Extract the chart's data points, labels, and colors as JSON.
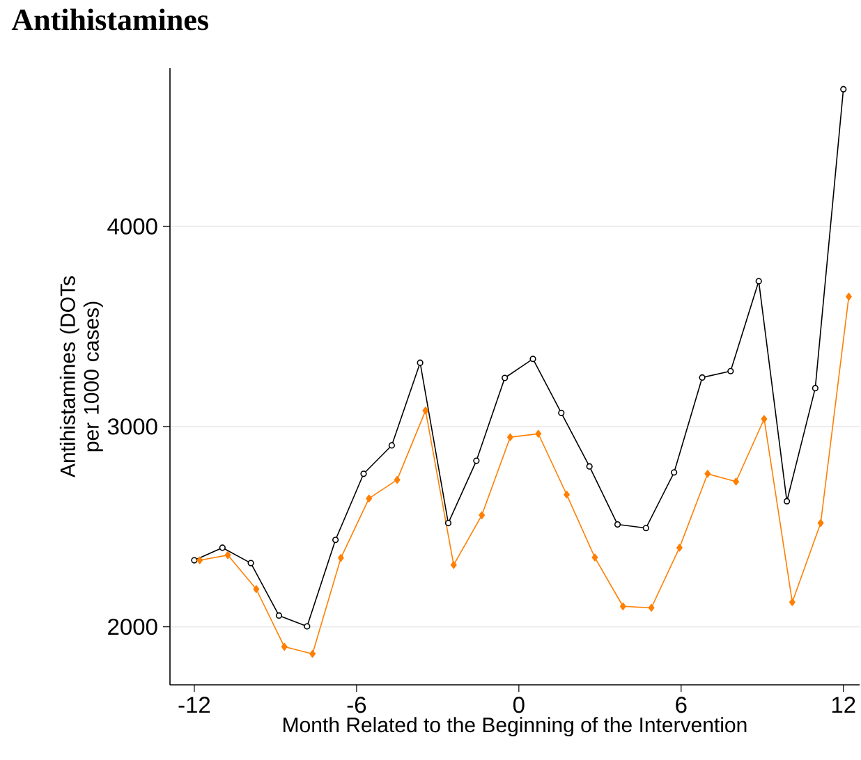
{
  "chart_data": {
    "type": "line",
    "title": "Antihistamines",
    "xlabel": "Month Related to the Beginning of the Intervention",
    "ylabel": "Antihistamines (DOTs per 1000 cases)",
    "xlim": [
      -12.9,
      12.6
    ],
    "xticks": [
      -12,
      -6,
      0,
      6,
      12
    ],
    "ylim": [
      1710,
      4790
    ],
    "yticks": [
      2000,
      3000,
      4000
    ],
    "grid": "y",
    "series": [
      {
        "color": "#000000",
        "marker": "circle",
        "x": [
          -12,
          -10.96,
          -9.91,
          -8.87,
          -7.83,
          -6.78,
          -5.74,
          -4.7,
          -3.65,
          -2.61,
          -1.57,
          -0.52,
          0.52,
          1.57,
          2.61,
          3.65,
          4.7,
          5.74,
          6.78,
          7.83,
          8.87,
          9.91,
          10.96,
          12
        ],
        "values": [
          2332,
          2395,
          2318,
          2056,
          2002,
          2434,
          2764,
          2906,
          3319,
          2518,
          2829,
          3243,
          3338,
          3068,
          2801,
          2511,
          2493,
          2771,
          3245,
          3277,
          3726,
          2627,
          3192,
          4685
        ]
      },
      {
        "color": "#ff7f00",
        "marker": "diamond",
        "x": [
          -11.8,
          -10.76,
          -9.71,
          -8.67,
          -7.63,
          -6.58,
          -5.54,
          -4.5,
          -3.45,
          -2.41,
          -1.37,
          -0.32,
          0.72,
          1.77,
          2.81,
          3.85,
          4.9,
          5.94,
          6.98,
          8.03,
          9.07,
          10.11,
          11.16,
          12.2
        ],
        "values": [
          2332,
          2358,
          2188,
          1900,
          1865,
          2344,
          2641,
          2734,
          3080,
          2309,
          2557,
          2947,
          2964,
          2660,
          2346,
          2102,
          2095,
          2395,
          2764,
          2725,
          3038,
          2123,
          2518,
          3649
        ]
      }
    ]
  }
}
